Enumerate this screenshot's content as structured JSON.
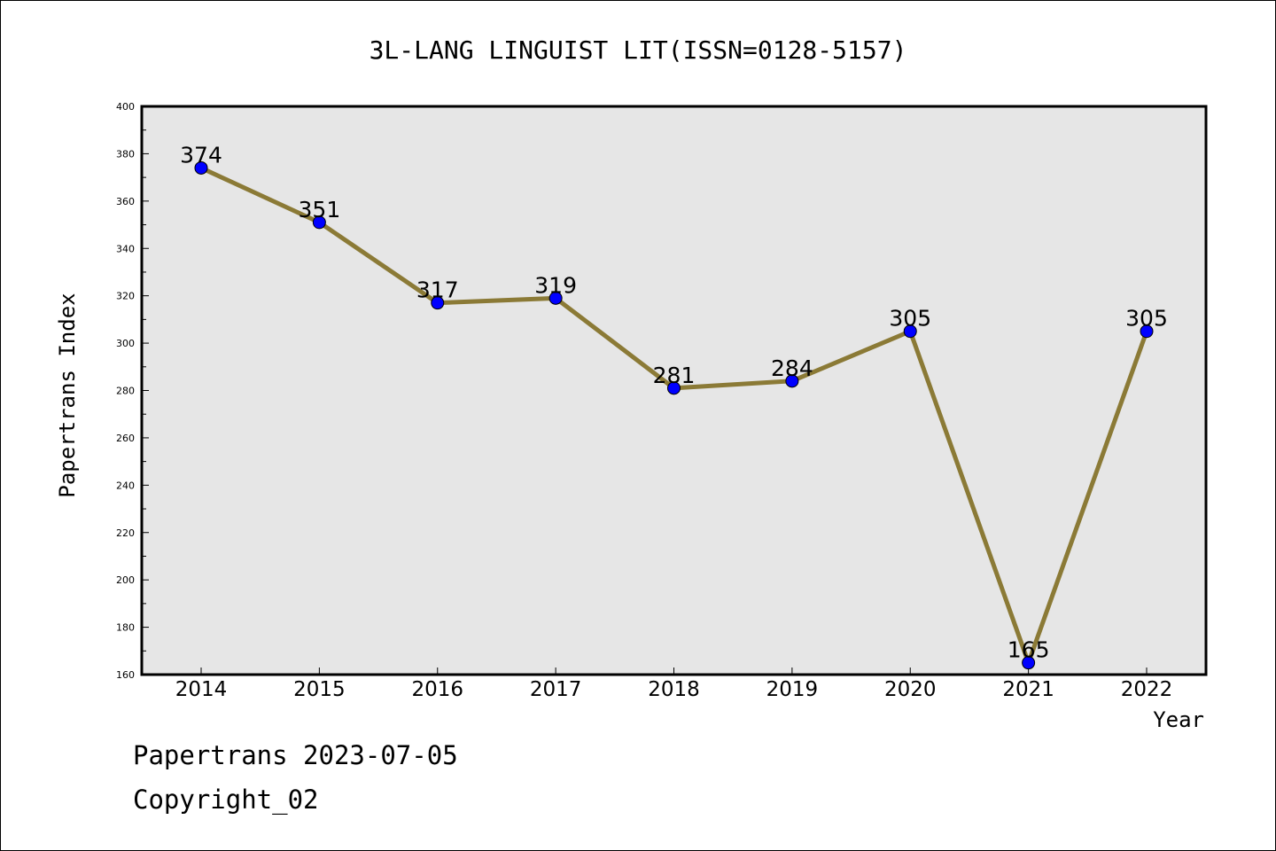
{
  "chart_data": {
    "type": "line",
    "title": "3L-LANG LINGUIST LIT(ISSN=0128-5157)",
    "xlabel": "Year",
    "ylabel": "Papertrans Index",
    "categories": [
      "2014",
      "2015",
      "2016",
      "2017",
      "2018",
      "2019",
      "2020",
      "2021",
      "2022"
    ],
    "series": [
      {
        "values": [
          374,
          351,
          317,
          319,
          281,
          284,
          305,
          165,
          305
        ],
        "line_color": "#8b7a36",
        "marker_color": "#0000ff"
      }
    ],
    "data_labels": [
      "374",
      "351",
      "317",
      "319",
      "281",
      "284",
      "305",
      "165",
      "305"
    ],
    "ylim": [
      160,
      400
    ],
    "yticks": [
      "160",
      "180",
      "200",
      "220",
      "240",
      "260",
      "280",
      "300",
      "320",
      "340",
      "360",
      "380",
      "400"
    ],
    "plot_background": "#e6e6e6",
    "grid": false,
    "legend": "none"
  },
  "footer": {
    "line1": "Papertrans 2023-07-05",
    "line2": "Copyright_02"
  }
}
